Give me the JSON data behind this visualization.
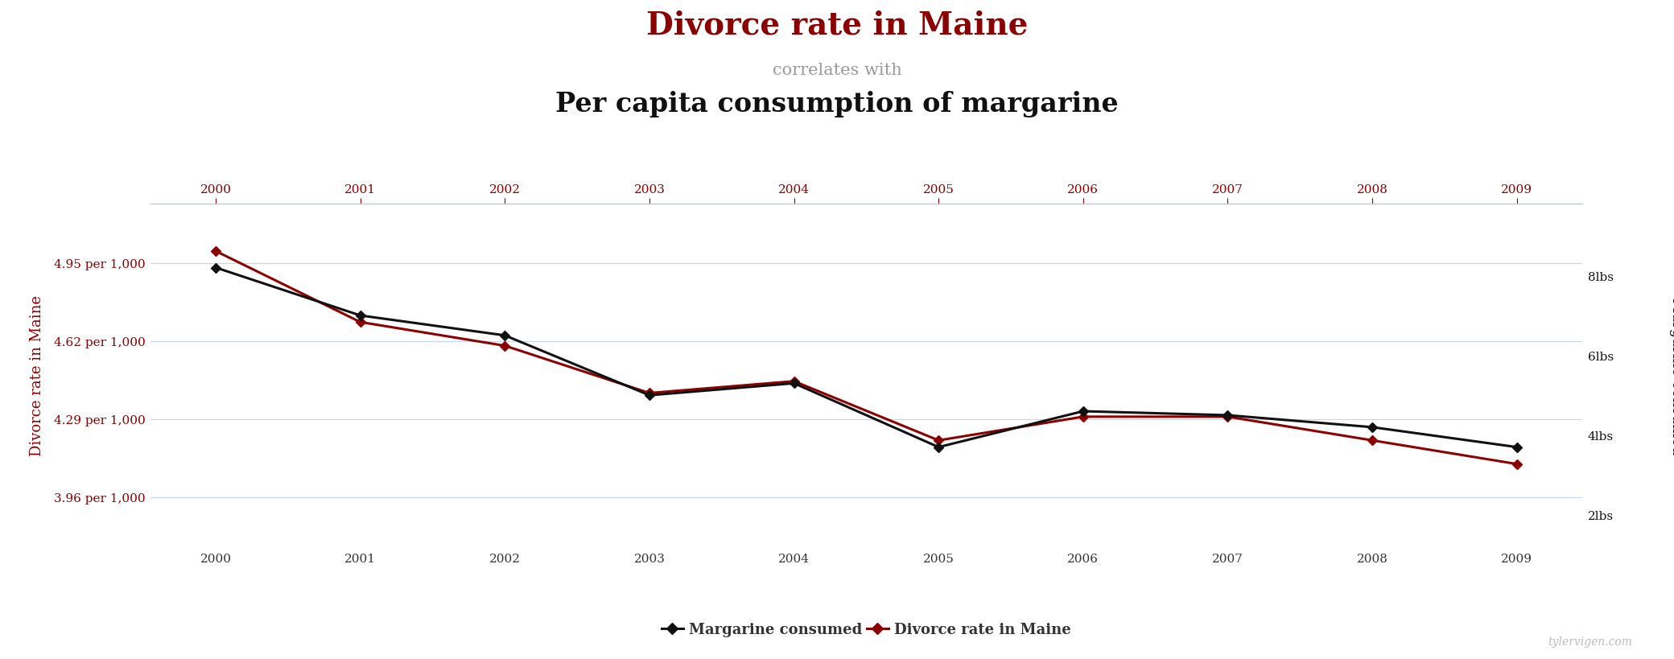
{
  "years": [
    2000,
    2001,
    2002,
    2003,
    2004,
    2005,
    2006,
    2007,
    2008,
    2009
  ],
  "divorce_rate": [
    5.0,
    4.7,
    4.6,
    4.4,
    4.45,
    4.2,
    4.3,
    4.3,
    4.2,
    4.1
  ],
  "margarine": [
    8.2,
    7.0,
    6.5,
    5.0,
    5.3,
    3.7,
    4.6,
    4.5,
    4.2,
    3.7
  ],
  "title_line1": "Divorce rate in Maine",
  "title_line2": "correlates with",
  "title_line3": "Per capita consumption of margarine",
  "ylabel_left": "Divorce rate in Maine",
  "ylabel_right": "Margarine consumed",
  "left_yticks": [
    3.96,
    4.29,
    4.62,
    4.95
  ],
  "left_ytick_labels": [
    "3.96 per 1,000",
    "4.29 per 1,000",
    "4.62 per 1,000",
    "4.95 per 1,000"
  ],
  "right_yticks": [
    2,
    4,
    6,
    8
  ],
  "right_ytick_labels": [
    "2lbs",
    "4lbs",
    "6lbs",
    "8lbs"
  ],
  "color_divorce": "#8B0000",
  "color_margarine": "#111111",
  "ylim_left": [
    3.75,
    5.2
  ],
  "ylim_right": [
    1.2,
    9.8
  ],
  "legend_label_margarine": "Margarine consumed",
  "legend_label_divorce": "Divorce rate in Maine",
  "watermark": "tylervigen.com",
  "bg_color": "#ffffff",
  "grid_color": "#c8d8e8",
  "top_line_color": "#b8ccd8"
}
